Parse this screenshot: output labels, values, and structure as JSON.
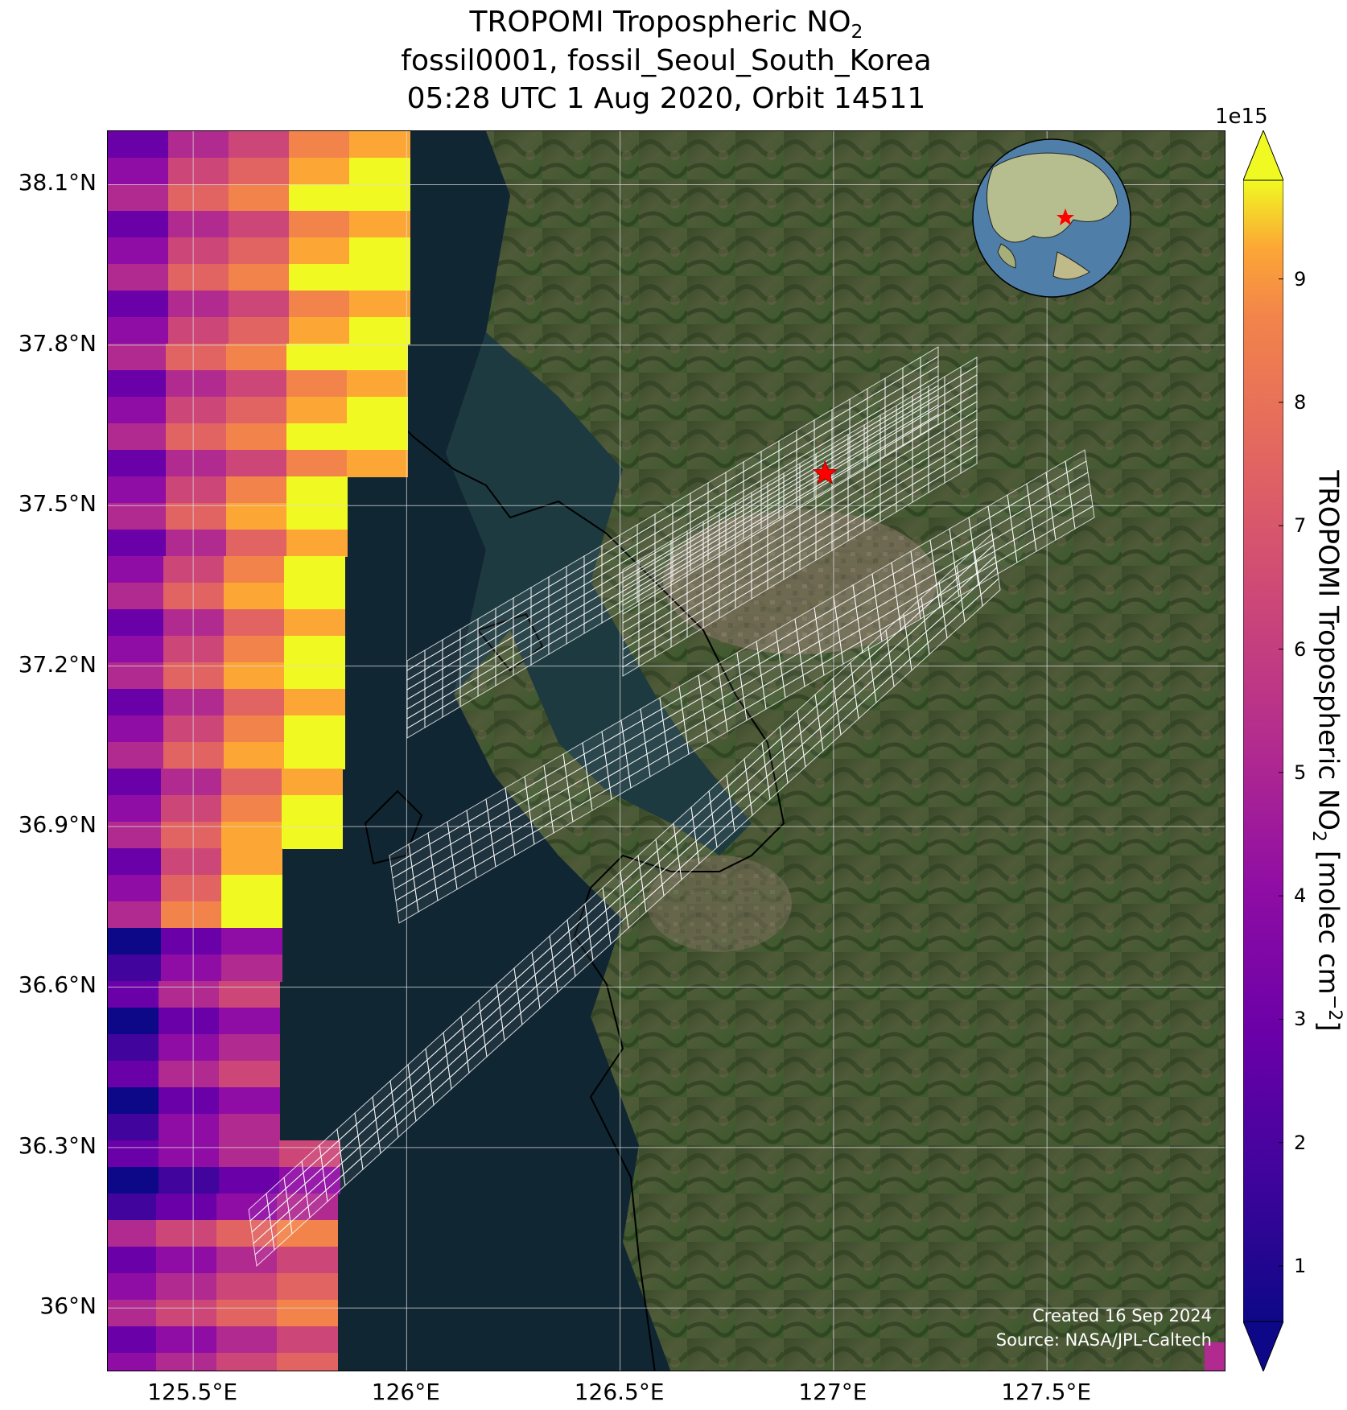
{
  "title": {
    "line1_prefix": "TROPOMI Tropospheric NO",
    "line1_sub": "2",
    "line2": "fossil0001, fossil_Seoul_South_Korea",
    "line3": "05:28 UTC 1 Aug 2020, Orbit 14511"
  },
  "axes": {
    "lat_ticks": [
      "38.1°N",
      "37.8°N",
      "37.5°N",
      "37.2°N",
      "36.9°N",
      "36.6°N",
      "36.3°N",
      "36°N"
    ],
    "lon_ticks": [
      "125.5°E",
      "126°E",
      "126.5°E",
      "127°E",
      "127.5°E"
    ],
    "lat_values": [
      38.1,
      37.8,
      37.5,
      37.2,
      36.9,
      36.6,
      36.3,
      36.0
    ],
    "lon_values": [
      125.5,
      126.0,
      126.5,
      127.0,
      127.5
    ],
    "lon_range": [
      125.3,
      127.92
    ],
    "lat_range": [
      35.88,
      38.2
    ],
    "grid": true
  },
  "colorbar": {
    "exponent": "1e15",
    "label_prefix": "TROPOMI Tropospheric NO",
    "label_sub": "2",
    "label_mid": " [molec cm",
    "label_sup": "−2",
    "label_end": "]",
    "ticks": [
      "1",
      "2",
      "3",
      "4",
      "5",
      "6",
      "7",
      "8",
      "9"
    ],
    "tick_values": [
      1,
      2,
      3,
      4,
      5,
      6,
      7,
      8,
      9
    ],
    "range": [
      0.55,
      9.8
    ],
    "colormap": "plasma",
    "extend": "both"
  },
  "target": {
    "name": "fossil_Seoul_South_Korea",
    "lon": 126.98,
    "lat": 37.56,
    "marker_color": "#ff0000"
  },
  "credits": {
    "created": "Created 16 Sep 2024",
    "source": "Source: NASA/JPL-Caltech"
  },
  "inset_globe": {
    "marker_color": "#ff0000"
  }
}
